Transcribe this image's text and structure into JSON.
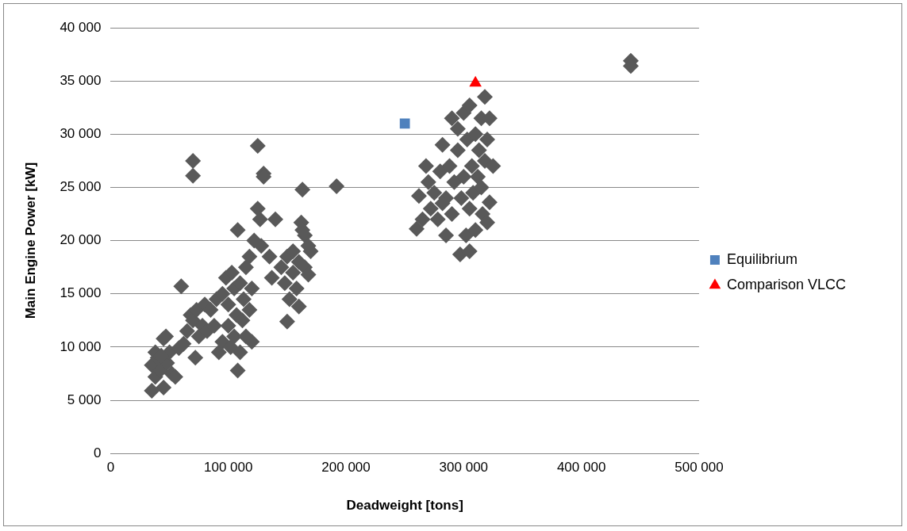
{
  "chart_data": {
    "type": "scatter",
    "xlabel": "Deadweight [tons]",
    "ylabel": "Main Engine Power [kW]",
    "xlim": [
      0,
      500000
    ],
    "xticks": [
      0,
      {
        "value": 100000,
        "label": "100 000"
      },
      {
        "value": 200000,
        "label": "200 000"
      },
      {
        "value": 300000,
        "label": "300 000"
      },
      {
        "value": 400000,
        "label": "400 000"
      },
      {
        "value": 500000,
        "label": "500 000"
      }
    ],
    "ylim": [
      0,
      40000
    ],
    "yticks": [
      0,
      {
        "value": 5000,
        "label": "5 000"
      },
      {
        "value": 10000,
        "label": "10 000"
      },
      {
        "value": 15000,
        "label": "15 000"
      },
      {
        "value": 20000,
        "label": "20 000"
      },
      {
        "value": 25000,
        "label": "25 000"
      },
      {
        "value": 30000,
        "label": "30 000"
      },
      {
        "value": 35000,
        "label": "35 000"
      },
      {
        "value": 40000,
        "label": "40 000"
      }
    ],
    "grid": "y",
    "legend": "right",
    "series": [
      {
        "color": "#595959",
        "marker": "diamond",
        "x": [
          35000,
          35000,
          38000,
          40000,
          42000,
          45000,
          45000,
          48000,
          50000,
          52000,
          55000,
          38000,
          43000,
          47000,
          58000,
          62000,
          60000,
          65000,
          68000,
          70000,
          72000,
          73000,
          75000,
          78000,
          80000,
          82000,
          85000,
          88000,
          90000,
          92000,
          95000,
          95000,
          98000,
          100000,
          100000,
          102000,
          103000,
          105000,
          105000,
          107000,
          108000,
          108000,
          110000,
          110000,
          112000,
          113000,
          115000,
          115000,
          118000,
          118000,
          120000,
          120000,
          70000,
          70000,
          125000,
          125000,
          127000,
          122000,
          130000,
          130000,
          128000,
          135000,
          140000,
          137000,
          145000,
          148000,
          150000,
          150000,
          152000,
          155000,
          155000,
          158000,
          160000,
          160000,
          162000,
          163000,
          165000,
          165000,
          168000,
          168000,
          192000,
          170000,
          163000,
          260000,
          262000,
          265000,
          268000,
          270000,
          272000,
          275000,
          278000,
          280000,
          282000,
          285000,
          285000,
          288000,
          290000,
          290000,
          292000,
          295000,
          297000,
          298000,
          300000,
          300000,
          302000,
          303000,
          305000,
          305000,
          307000,
          308000,
          310000,
          310000,
          312000,
          313000,
          315000,
          315000,
          316000,
          318000,
          318000,
          320000,
          320000,
          322000,
          322000,
          325000,
          305000,
          295000,
          282000,
          442000,
          442000
        ],
        "values": [
          5900,
          8300,
          7200,
          9000,
          7800,
          6200,
          10800,
          8500,
          9500,
          7500,
          7200,
          9500,
          9200,
          11000,
          9900,
          10300,
          15700,
          11500,
          13000,
          12500,
          9000,
          13500,
          11000,
          12000,
          14000,
          11500,
          13500,
          12000,
          14500,
          9500,
          10500,
          15000,
          16500,
          12000,
          14000,
          10000,
          17000,
          15500,
          11000,
          13000,
          21000,
          7800,
          9500,
          16000,
          12500,
          14500,
          17500,
          11000,
          18500,
          13500,
          10500,
          15500,
          27500,
          26100,
          28900,
          23000,
          22000,
          20000,
          26300,
          26000,
          19500,
          18500,
          22000,
          16500,
          17500,
          16000,
          12400,
          18500,
          14500,
          19000,
          17000,
          15500,
          18000,
          13800,
          21700,
          24800,
          20500,
          17500,
          19500,
          16800,
          25100,
          19000,
          21000,
          21100,
          24200,
          22000,
          27000,
          25500,
          23000,
          24500,
          22000,
          26500,
          29000,
          20500,
          24000,
          27000,
          31500,
          22500,
          25500,
          28500,
          18700,
          24000,
          32000,
          26000,
          20500,
          29500,
          32700,
          19000,
          27000,
          24500,
          30000,
          21000,
          26000,
          28500,
          31500,
          25000,
          22500,
          33500,
          27500,
          21700,
          29500,
          23600,
          31500,
          27000,
          23000,
          30500,
          23500,
          36900,
          36400
        ]
      },
      {
        "name": "Equilibrium",
        "color": "#4f81bd",
        "marker": "square",
        "x": [
          250000
        ],
        "values": [
          31000
        ]
      },
      {
        "name": "Comparison VLCC",
        "color": "#ff0000",
        "marker": "triangle",
        "x": [
          310000
        ],
        "values": [
          34800
        ]
      }
    ]
  }
}
